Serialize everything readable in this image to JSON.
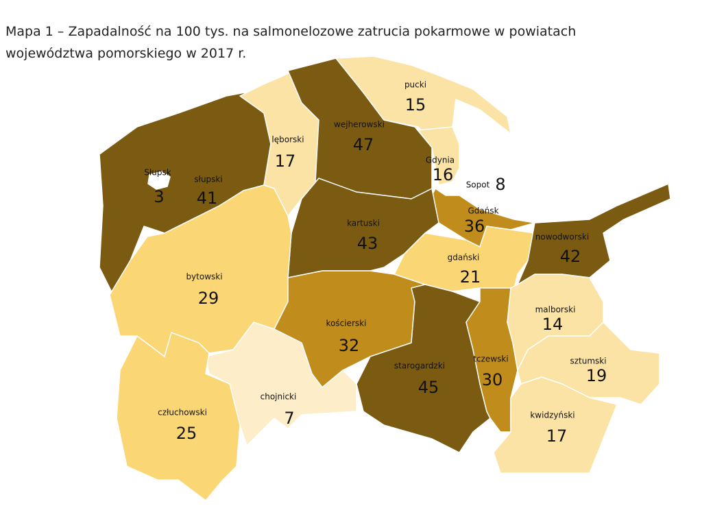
{
  "title": [
    "Mapa 1 – Zapadalność na 100 tys. na salmonelozowe zatrucia pokarmowe w powiatach",
    "województwa pomorskiego w 2017 r."
  ],
  "regions": [
    {
      "name": "Słupsk",
      "value": 3,
      "color": "#ffffff"
    },
    {
      "name": "słupski",
      "value": 41,
      "color": "#7b5a12"
    },
    {
      "name": "lęborski",
      "value": 17,
      "color": "#fbe3a6"
    },
    {
      "name": "wejherowski",
      "value": 47,
      "color": "#7b5a12"
    },
    {
      "name": "pucki",
      "value": 15,
      "color": "#fbe3a6"
    },
    {
      "name": "Gdynia",
      "value": 16,
      "color": "#fbe3a6"
    },
    {
      "name": "Sopot",
      "value": 8,
      "color": "#ffffff"
    },
    {
      "name": "Gdańsk",
      "value": 36,
      "color": "#c08c1c"
    },
    {
      "name": "kartuski",
      "value": 43,
      "color": "#7b5a12"
    },
    {
      "name": "gdański",
      "value": 21,
      "color": "#fad675"
    },
    {
      "name": "nowodworski",
      "value": 42,
      "color": "#7b5a12"
    },
    {
      "name": "bytowski",
      "value": 29,
      "color": "#fad675"
    },
    {
      "name": "kościerski",
      "value": 32,
      "color": "#c08c1c"
    },
    {
      "name": "chojnicki",
      "value": 7,
      "color": "#fdedc8"
    },
    {
      "name": "człuchowski",
      "value": 25,
      "color": "#fad675"
    },
    {
      "name": "starogardzki",
      "value": 45,
      "color": "#7b5a12"
    },
    {
      "name": "tczewski",
      "value": 30,
      "color": "#c08c1c"
    },
    {
      "name": "malborski",
      "value": 14,
      "color": "#fbe3a6"
    },
    {
      "name": "sztumski",
      "value": 19,
      "color": "#fbe3a6"
    },
    {
      "name": "kwidzyński",
      "value": 17,
      "color": "#fbe3a6"
    }
  ]
}
